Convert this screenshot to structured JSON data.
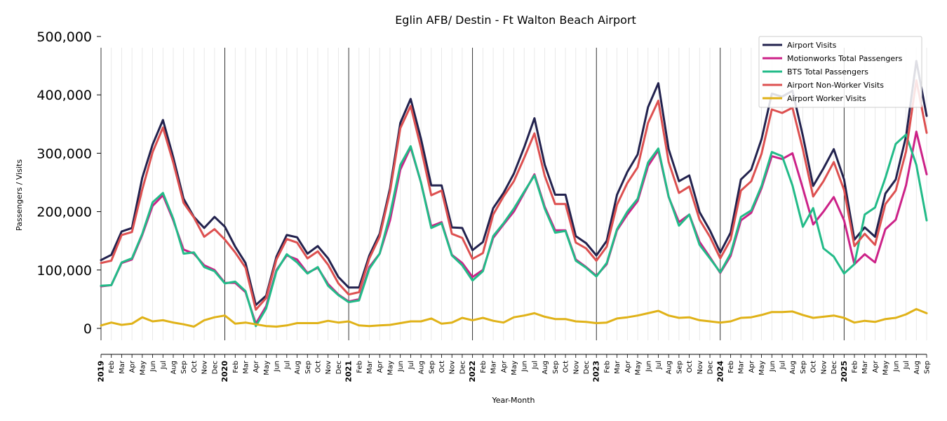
{
  "chart_data": {
    "type": "line",
    "title": "Eglin AFB/ Destin - Ft Walton Beach Airport",
    "xlabel": "Year-Month",
    "ylabel": "Passengers / Visits",
    "ylim": [
      -20000,
      500000
    ],
    "yticks": [
      0,
      100000,
      200000,
      300000,
      400000,
      500000
    ],
    "ytick_labels": [
      "0",
      "100,000",
      "200,000",
      "300,000",
      "400,000",
      "500,000"
    ],
    "legend_position": "top-right",
    "grid": "vertical monthly gridlines",
    "x": [
      "2019",
      "Feb",
      "Mar",
      "Apr",
      "May",
      "Jun",
      "Jul",
      "Aug",
      "Sep",
      "Oct",
      "Nov",
      "Dec",
      "2020",
      "Feb",
      "Mar",
      "Apr",
      "May",
      "Jun",
      "Jul",
      "Aug",
      "Sep",
      "Oct",
      "Nov",
      "Dec",
      "2021",
      "Feb",
      "Mar",
      "Apr",
      "May",
      "Jun",
      "Jul",
      "Aug",
      "Sep",
      "Oct",
      "Nov",
      "Dec",
      "2022",
      "Feb",
      "Mar",
      "Apr",
      "May",
      "Jun",
      "Jul",
      "Aug",
      "Sep",
      "Oct",
      "Nov",
      "Dec",
      "2023",
      "Feb",
      "Mar",
      "Apr",
      "May",
      "Jun",
      "Jul",
      "Aug",
      "Sep",
      "Oct",
      "Nov",
      "Dec",
      "2024",
      "Feb",
      "Mar",
      "Apr",
      "May",
      "Jun",
      "Jul",
      "Aug",
      "Sep",
      "Oct",
      "Nov",
      "Dec",
      "2025",
      "Feb",
      "Mar",
      "Apr",
      "May",
      "Jun",
      "Jul",
      "Aug",
      "Sep"
    ],
    "series": [
      {
        "name": "Airport Visits",
        "color": "#22224e",
        "values": [
          117000,
          126000,
          166000,
          172000,
          258000,
          315000,
          357000,
          293000,
          222000,
          191000,
          172000,
          191000,
          174000,
          140000,
          112000,
          40000,
          56000,
          123000,
          160000,
          156000,
          128000,
          141000,
          120000,
          88000,
          70000,
          70000,
          125000,
          162000,
          240000,
          352000,
          393000,
          325000,
          245000,
          245000,
          173000,
          172000,
          134000,
          148000,
          206000,
          232000,
          265000,
          310000,
          360000,
          280000,
          229000,
          229000,
          158000,
          146000,
          125000,
          150000,
          229000,
          268000,
          298000,
          379000,
          420000,
          307000,
          252000,
          262000,
          199000,
          168000,
          130000,
          164000,
          255000,
          272000,
          324000,
          402000,
          397000,
          407000,
          330000,
          244000,
          274000,
          307000,
          255000,
          152000,
          173000,
          157000,
          231000,
          255000,
          329000,
          458000,
          364000
        ]
      },
      {
        "name": "Motionworks Total Passengers",
        "color": "#cc2288",
        "values": [
          72000,
          74000,
          112000,
          118000,
          160000,
          210000,
          228000,
          185000,
          135000,
          128000,
          108000,
          100000,
          78000,
          78000,
          62000,
          8000,
          38000,
          100000,
          125000,
          118000,
          95000,
          104000,
          76000,
          58000,
          46000,
          50000,
          105000,
          128000,
          185000,
          272000,
          310000,
          250000,
          175000,
          182000,
          126000,
          112000,
          88000,
          100000,
          155000,
          178000,
          200000,
          232000,
          264000,
          208000,
          168000,
          168000,
          118000,
          105000,
          90000,
          110000,
          168000,
          195000,
          218000,
          278000,
          305000,
          225000,
          182000,
          195000,
          148000,
          122000,
          95000,
          124000,
          185000,
          198000,
          240000,
          295000,
          290000,
          300000,
          240000,
          178000,
          200000,
          225000,
          185000,
          110000,
          127000,
          113000,
          170000,
          186000,
          245000,
          337000,
          264000
        ]
      },
      {
        "name": "BTS Total Passengers",
        "color": "#22bb88",
        "values": [
          73000,
          74000,
          113000,
          120000,
          162000,
          216000,
          232000,
          188000,
          128000,
          130000,
          105000,
          98000,
          77000,
          80000,
          64000,
          4000,
          34000,
          98000,
          127000,
          113000,
          94000,
          105000,
          73000,
          57000,
          45000,
          48000,
          102000,
          128000,
          195000,
          280000,
          312000,
          250000,
          172000,
          180000,
          125000,
          108000,
          82000,
          98000,
          158000,
          180000,
          205000,
          234000,
          262000,
          205000,
          164000,
          167000,
          116000,
          104000,
          89000,
          112000,
          170000,
          200000,
          222000,
          284000,
          308000,
          226000,
          176000,
          195000,
          143000,
          120000,
          96000,
          128000,
          191000,
          202000,
          244000,
          302000,
          295000,
          245000,
          174000,
          206000,
          137000,
          123000,
          94000,
          110000,
          195000,
          207000,
          258000,
          316000,
          332000,
          280000,
          185000
        ]
      },
      {
        "name": "Airport Non-Worker Visits",
        "color": "#dd5050",
        "values": [
          112000,
          116000,
          160000,
          165000,
          238000,
          302000,
          344000,
          284000,
          215000,
          190000,
          157000,
          170000,
          152000,
          130000,
          104000,
          32000,
          52000,
          118000,
          153000,
          147000,
          120000,
          132000,
          109000,
          77000,
          58000,
          62000,
          120000,
          157000,
          234000,
          343000,
          381000,
          309000,
          228000,
          236000,
          162000,
          155000,
          119000,
          129000,
          195000,
          226000,
          252000,
          292000,
          334000,
          261000,
          213000,
          213000,
          147000,
          137000,
          116000,
          140000,
          212000,
          249000,
          276000,
          352000,
          390000,
          285000,
          232000,
          243000,
          186000,
          157000,
          120000,
          152000,
          236000,
          252000,
          299000,
          375000,
          369000,
          378000,
          307000,
          226000,
          252000,
          285000,
          237000,
          141000,
          162000,
          143000,
          213000,
          236000,
          303000,
          425000,
          335000
        ]
      },
      {
        "name": "Airport Worker Visits",
        "color": "#e0b218",
        "values": [
          5000,
          10000,
          6000,
          8000,
          19000,
          12000,
          14000,
          10000,
          7000,
          3000,
          14000,
          19000,
          22000,
          8000,
          10000,
          7000,
          4000,
          3000,
          5000,
          9000,
          9000,
          9000,
          13000,
          10000,
          12000,
          5000,
          4000,
          5000,
          6000,
          9000,
          12000,
          12000,
          17000,
          8000,
          10000,
          18000,
          14000,
          18000,
          13000,
          10000,
          19000,
          22000,
          26000,
          20000,
          16000,
          16000,
          12000,
          11000,
          9000,
          10000,
          17000,
          19000,
          22000,
          26000,
          30000,
          22000,
          18000,
          19000,
          14000,
          12000,
          10000,
          12000,
          18000,
          19000,
          23000,
          28000,
          28000,
          29000,
          23000,
          18000,
          20000,
          22000,
          18000,
          10000,
          13000,
          11000,
          16000,
          18000,
          24000,
          33000,
          26000
        ]
      }
    ]
  }
}
